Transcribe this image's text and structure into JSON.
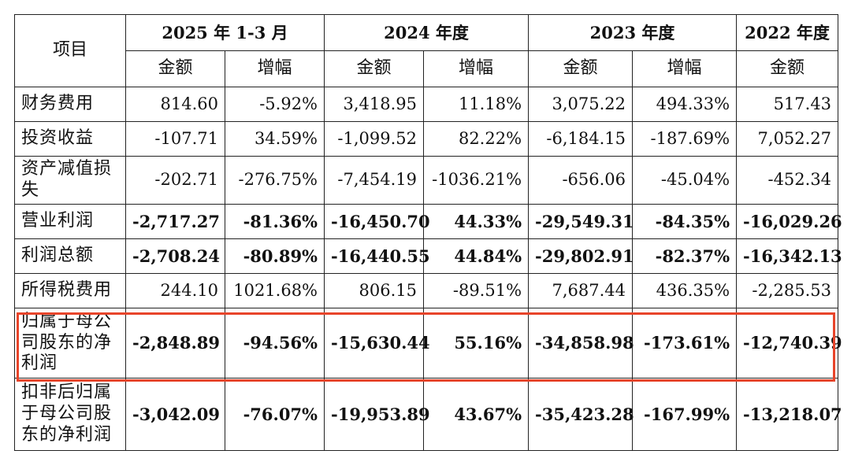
{
  "header": {
    "item": "项目",
    "periods": [
      "2025 年 1-3 月",
      "2024 年度",
      "2023 年度",
      "2022 年度"
    ],
    "amount": "金额",
    "growth": "增幅"
  },
  "rows": [
    {
      "label": "财务费用",
      "bold": false,
      "values": [
        "814.60",
        "-5.92%",
        "3,418.95",
        "11.18%",
        "3,075.22",
        "494.33%",
        "517.43"
      ]
    },
    {
      "label": "投资收益",
      "bold": false,
      "values": [
        "-107.71",
        "34.59%",
        "-1,099.52",
        "82.22%",
        "-6,184.15",
        "-187.69%",
        "7,052.27"
      ]
    },
    {
      "label": "资产减值损失",
      "bold": false,
      "values": [
        "-202.71",
        "-276.75%",
        "-7,454.19",
        "-1036.21%",
        "-656.06",
        "-45.04%",
        "-452.34"
      ]
    },
    {
      "label": "营业利润",
      "bold": true,
      "values": [
        "-2,717.27",
        "-81.36%",
        "-16,450.70",
        "44.33%",
        "-29,549.31",
        "-84.35%",
        "-16,029.26"
      ]
    },
    {
      "label": "利润总额",
      "bold": true,
      "values": [
        "-2,708.24",
        "-80.89%",
        "-16,440.55",
        "44.84%",
        "-29,802.91",
        "-82.37%",
        "-16,342.13"
      ]
    },
    {
      "label": "所得税费用",
      "bold": false,
      "values": [
        "244.10",
        "1021.68%",
        "806.15",
        "-89.51%",
        "7,687.44",
        "436.35%",
        "-2,285.53"
      ]
    },
    {
      "label": "归属于母公司股东的净利润",
      "bold": true,
      "highlighted": true,
      "values": [
        "-2,848.89",
        "-94.56%",
        "-15,630.44",
        "55.16%",
        "-34,858.98",
        "-173.61%",
        "-12,740.39"
      ]
    },
    {
      "label": "扣非后归属于母公司股东的净利润",
      "bold": true,
      "values": [
        "-3,042.09",
        "-76.07%",
        "-19,953.89",
        "43.67%",
        "-35,423.28",
        "-167.99%",
        "-13,218.07"
      ]
    }
  ],
  "highlight_color": "#e8442a"
}
